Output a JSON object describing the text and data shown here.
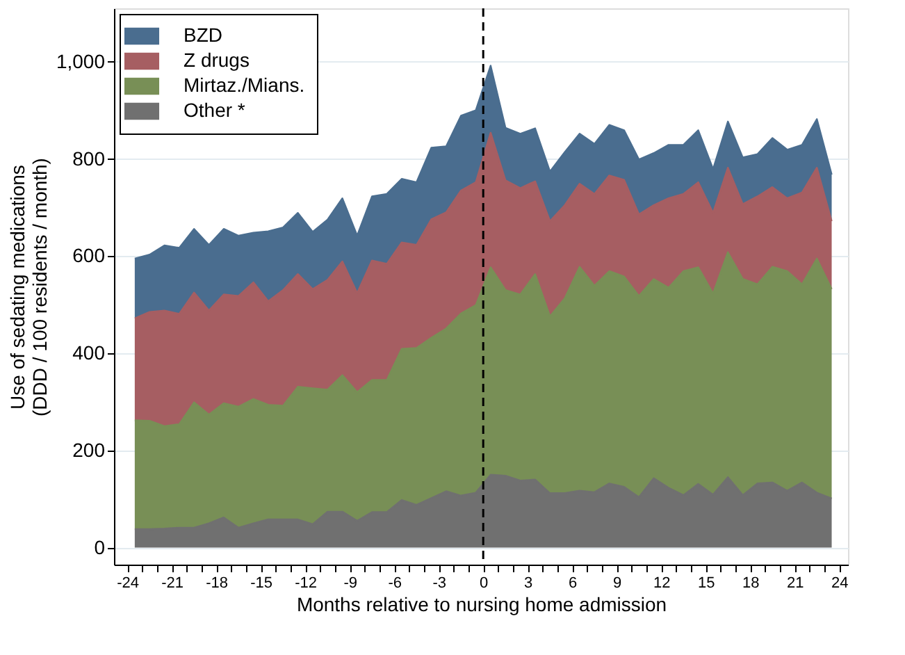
{
  "chart_data": {
    "type": "area",
    "stacked": true,
    "xlabel": "Months relative to nursing home admission",
    "ylabel": "Use of sedating medications\n(DDD / 100 residents / month)",
    "x": [
      -23.5,
      -22.5,
      -21.5,
      -20.5,
      -19.5,
      -18.5,
      -17.5,
      -16.5,
      -15.5,
      -14.5,
      -13.5,
      -12.5,
      -11.5,
      -10.5,
      -9.5,
      -8.5,
      -7.5,
      -6.5,
      -5.5,
      -4.5,
      -3.5,
      -2.5,
      -1.5,
      -0.5,
      0.5,
      1.5,
      2.5,
      3.5,
      4.5,
      5.5,
      6.5,
      7.5,
      8.5,
      9.5,
      10.5,
      11.5,
      12.5,
      13.5,
      14.5,
      15.5,
      16.5,
      17.5,
      18.5,
      19.5,
      20.5,
      21.5,
      22.5,
      23.5
    ],
    "series": [
      {
        "name": "Other *",
        "color": "#707070",
        "values": [
          38,
          38,
          39,
          41,
          41,
          50,
          62,
          41,
          50,
          58,
          58,
          58,
          48,
          74,
          74,
          55,
          73,
          73,
          98,
          88,
          102,
          116,
          107,
          113,
          150,
          148,
          138,
          140,
          112,
          112,
          117,
          114,
          132,
          125,
          104,
          143,
          123,
          108,
          131,
          109,
          145,
          108,
          132,
          134,
          117,
          134,
          113,
          101
        ]
      },
      {
        "name": "Mirtaz./Mians.",
        "color": "#788f56",
        "values": [
          224,
          223,
          211,
          213,
          258,
          224,
          235,
          249,
          256,
          236,
          234,
          273,
          280,
          251,
          281,
          265,
          272,
          272,
          311,
          323,
          330,
          335,
          375,
          386,
          427,
          382,
          383,
          423,
          364,
          401,
          461,
          425,
          437,
          433,
          414,
          410,
          412,
          461,
          446,
          414,
          463,
          445,
          410,
          444,
          452,
          408,
          482,
          431
        ]
      },
      {
        "name": "Z drugs",
        "color": "#a65e62",
        "values": [
          210,
          224,
          238,
          227,
          226,
          214,
          224,
          228,
          240,
          213,
          238,
          232,
          204,
          226,
          234,
          204,
          246,
          239,
          219,
          212,
          244,
          239,
          253,
          253,
          277,
          226,
          219,
          191,
          196,
          192,
          171,
          189,
          197,
          199,
          168,
          152,
          184,
          159,
          175,
          166,
          174,
          154,
          181,
          164,
          150,
          189,
          187,
          140
        ]
      },
      {
        "name": "BZD",
        "color": "#4a6d8f",
        "values": [
          123,
          118,
          134,
          136,
          131,
          135,
          135,
          124,
          102,
          144,
          129,
          126,
          118,
          124,
          130,
          118,
          132,
          144,
          131,
          129,
          147,
          136,
          154,
          148,
          138,
          108,
          112,
          109,
          102,
          109,
          103,
          103,
          104,
          102,
          113,
          107,
          110,
          101,
          107,
          90,
          95,
          96,
          87,
          101,
          100,
          98,
          100,
          96
        ]
      }
    ],
    "xlim": [
      -24.9,
      24.6
    ],
    "xticks": [
      -24,
      {
        "value": -23,
        "label": null
      },
      {
        "value": -22,
        "label": null
      },
      -21,
      {
        "value": -20,
        "label": null
      },
      {
        "value": -19,
        "label": null
      },
      -18,
      {
        "value": -17,
        "label": null
      },
      {
        "value": -16,
        "label": null
      },
      -15,
      {
        "value": -14,
        "label": null
      },
      {
        "value": -13,
        "label": null
      },
      -12,
      {
        "value": -11,
        "label": null
      },
      {
        "value": -10,
        "label": null
      },
      -9,
      {
        "value": -8,
        "label": null
      },
      {
        "value": -7,
        "label": null
      },
      -6,
      {
        "value": -5,
        "label": null
      },
      {
        "value": -4,
        "label": null
      },
      -3,
      {
        "value": -2,
        "label": null
      },
      {
        "value": -1,
        "label": null
      },
      0,
      {
        "value": 1,
        "label": null
      },
      {
        "value": 2,
        "label": null
      },
      3,
      {
        "value": 4,
        "label": null
      },
      {
        "value": 5,
        "label": null
      },
      6,
      {
        "value": 7,
        "label": null
      },
      {
        "value": 8,
        "label": null
      },
      9,
      {
        "value": 10,
        "label": null
      },
      {
        "value": 11,
        "label": null
      },
      12,
      {
        "value": 13,
        "label": null
      },
      {
        "value": 14,
        "label": null
      },
      15,
      {
        "value": 16,
        "label": null
      },
      {
        "value": 17,
        "label": null
      },
      18,
      {
        "value": 19,
        "label": null
      },
      {
        "value": 20,
        "label": null
      },
      21,
      {
        "value": 22,
        "label": null
      },
      {
        "value": 23,
        "label": null
      },
      24
    ],
    "ylim": [
      -35,
      1110
    ],
    "yticks": [
      0,
      200,
      400,
      600,
      800,
      {
        "value": 1000,
        "label": "1,000"
      }
    ],
    "grid": "y",
    "legend": "top left",
    "ref_lines": [
      {
        "axis": "x",
        "value": 0,
        "color": "#000000",
        "line_style": "dashed"
      }
    ]
  }
}
